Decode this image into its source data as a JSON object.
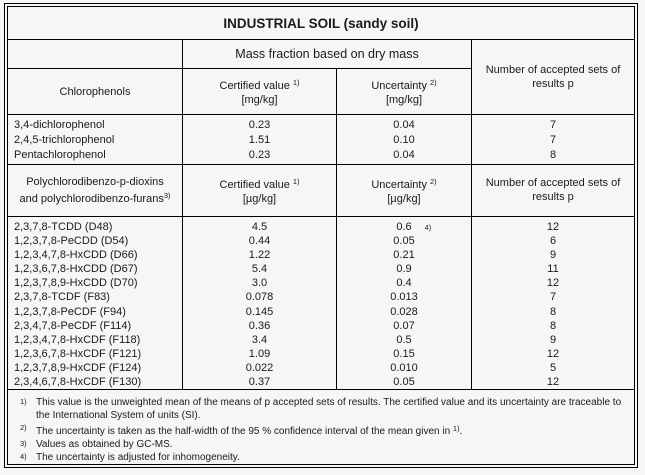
{
  "title": "INDUSTRIAL SOIL (sandy soil)",
  "mass_header": "Mass fraction based on dry mass",
  "accepted_header": "Number of accepted sets of results p",
  "sections": {
    "chlorophenols": {
      "name_header": "Chlorophenols",
      "certified_label": "Certified value",
      "certified_sup": "1)",
      "certified_unit": "[mg/kg]",
      "uncertainty_label": "Uncertainty",
      "uncertainty_sup": "2)",
      "uncertainty_unit": "[mg/kg]",
      "rows": [
        {
          "name": "3,4-dichlorophenol",
          "certified": "0.23",
          "uncertainty": "0.04",
          "p": "7"
        },
        {
          "name": "2,4,5-trichlorophenol",
          "certified": "1.51",
          "uncertainty": "0.10",
          "p": "7"
        },
        {
          "name": "Pentachlorophenol",
          "certified": "0.23",
          "uncertainty": "0.04",
          "p": "8"
        }
      ]
    },
    "dioxins": {
      "name_line1": "Polychlorodibenzo-p-dioxins",
      "name_line2": "and polychlorodibenzo-furans",
      "name_sup": "3)",
      "certified_label": "Certified value",
      "certified_sup": "1)",
      "certified_unit": "[µg/kg]",
      "uncertainty_label": "Uncertainty",
      "uncertainty_sup": "2)",
      "uncertainty_unit": "[µg/kg]",
      "rows": [
        {
          "name": "2,3,7,8-TCDD (D48)",
          "certified": "4.5",
          "uncertainty": "0.6",
          "uncertainty_sup": "4)",
          "p": "12"
        },
        {
          "name": "1,2,3,7,8-PeCDD (D54)",
          "certified": "0.44",
          "uncertainty": "0.05",
          "p": "6"
        },
        {
          "name": "1,2,3,4,7,8-HxCDD (D66)",
          "certified": "1.22",
          "uncertainty": "0.21",
          "p": "9"
        },
        {
          "name": "1,2,3,6,7,8-HxCDD (D67)",
          "certified": "5.4",
          "uncertainty": "0.9",
          "p": "11"
        },
        {
          "name": "1,2,3,7,8,9-HxCDD (D70)",
          "certified": "3.0",
          "uncertainty": "0.4",
          "p": "12"
        },
        {
          "name": "2,3,7,8-TCDF (F83)",
          "certified": "0.078",
          "uncertainty": "0.013",
          "p": "7"
        },
        {
          "name": "1,2,3,7,8-PeCDF (F94)",
          "certified": "0.145",
          "uncertainty": "0.028",
          "p": "8"
        },
        {
          "name": "2,3,4,7,8-PeCDF (F114)",
          "certified": "0.36",
          "uncertainty": "0.07",
          "p": "8"
        },
        {
          "name": "1,2,3,4,7,8-HxCDF (F118)",
          "certified": "3.4",
          "uncertainty": "0.5",
          "p": "9"
        },
        {
          "name": "1,2,3,6,7,8-HxCDF (F121)",
          "certified": "1.09",
          "uncertainty": "0.15",
          "p": "12"
        },
        {
          "name": "1,2,3,7,8,9-HxCDF (F124)",
          "certified": "0.022",
          "uncertainty": "0.010",
          "p": "5"
        },
        {
          "name": "2,3,4,6,7,8-HxCDF (F130)",
          "certified": "0.37",
          "uncertainty": "0.05",
          "p": "12"
        }
      ]
    }
  },
  "footnotes": [
    {
      "marker": "1)",
      "text": "This value is the unweighted mean of the means of p accepted sets of results. The certified value and its uncertainty are traceable to the International System of units (SI).",
      "sup": "",
      "tail": ""
    },
    {
      "marker": "2)",
      "text": "The uncertainty is taken as the half-width of the 95 % confidence interval of the mean given in ",
      "sup": "1)",
      "tail": "."
    },
    {
      "marker": "3)",
      "text": "Values as obtained by GC-MS.",
      "sup": "",
      "tail": ""
    },
    {
      "marker": "4)",
      "text": "The uncertainty is adjusted for inhomogeneity.",
      "sup": "",
      "tail": ""
    }
  ]
}
